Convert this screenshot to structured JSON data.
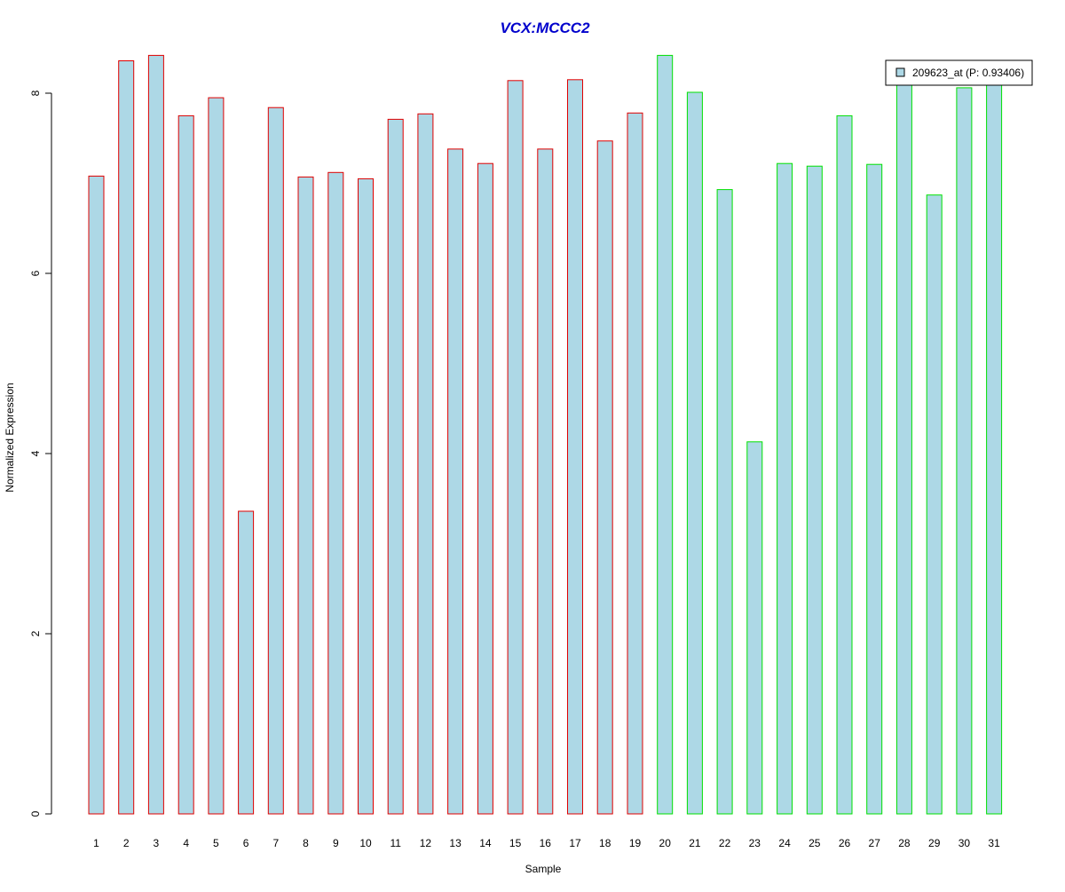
{
  "chart_data": {
    "type": "bar",
    "title": "VCX:MCCC2",
    "xlabel": "Sample",
    "ylabel": "Normalized Expression",
    "categories": [
      "1",
      "2",
      "3",
      "4",
      "5",
      "6",
      "7",
      "8",
      "9",
      "10",
      "11",
      "12",
      "13",
      "14",
      "15",
      "16",
      "17",
      "18",
      "19",
      "20",
      "21",
      "22",
      "23",
      "24",
      "25",
      "26",
      "27",
      "28",
      "29",
      "30",
      "31"
    ],
    "series": [
      {
        "name": "209623_at (P: 0.93406)",
        "values": [
          7.08,
          8.36,
          8.42,
          7.75,
          7.95,
          3.36,
          7.84,
          7.07,
          7.12,
          7.05,
          7.71,
          7.77,
          7.38,
          7.22,
          8.14,
          7.38,
          8.15,
          7.47,
          7.78,
          8.42,
          8.01,
          6.93,
          4.13,
          7.22,
          7.19,
          7.75,
          7.21,
          8.13,
          6.87,
          8.06,
          8.13
        ]
      }
    ],
    "groups": [
      {
        "samples": "1-19",
        "border_color": "#e00000"
      },
      {
        "samples": "20-31",
        "border_color": "#00e000"
      }
    ],
    "bar_fill": "#add8e6",
    "title_color": "#0000cc",
    "ylim": [
      0,
      8.45
    ],
    "y_ticks": [
      "0",
      "2",
      "4",
      "6",
      "8"
    ],
    "legend_position": "top-right",
    "grid": false
  }
}
